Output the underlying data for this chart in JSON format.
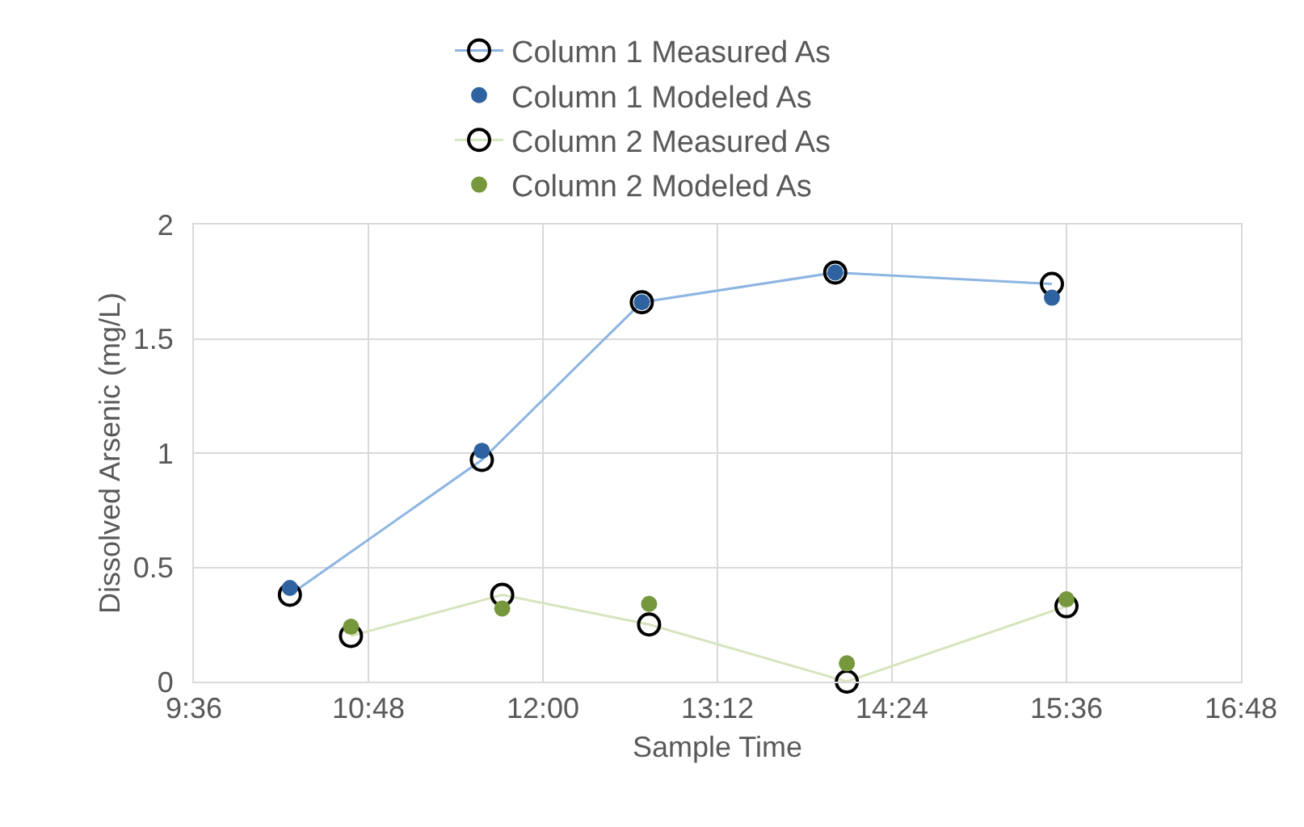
{
  "chart_data": {
    "type": "line",
    "xlabel": "Sample Time",
    "ylabel": "Dissolved Arsenic (mg/L)",
    "xlim": [
      9.6,
      16.8
    ],
    "xticks": [
      {
        "value": 9.6,
        "label": "9:36"
      },
      {
        "value": 10.8,
        "label": "10:48"
      },
      {
        "value": 12,
        "label": "12:00"
      },
      {
        "value": 13.2,
        "label": "13:12"
      },
      {
        "value": 14.4,
        "label": "14:24"
      },
      {
        "value": 15.6,
        "label": "15:36"
      },
      {
        "value": 16.8,
        "label": "16:48"
      }
    ],
    "ylim": [
      0,
      2
    ],
    "yticks": [
      0,
      0.5,
      1,
      1.5,
      2
    ],
    "grid": true,
    "legend": "top",
    "marker": "circle",
    "series": [
      {
        "name": "Column 1 Measured As",
        "color": "#8db4e2",
        "x": [
          10.26,
          11.58,
          12.68,
          14.01,
          15.5
        ],
        "values": [
          0.38,
          0.97,
          1.66,
          1.79,
          1.74
        ]
      },
      {
        "name": "Column 1 Modeled As",
        "type": "scatter",
        "color": "#2e62a0",
        "x": [
          10.26,
          11.58,
          12.68,
          14.01,
          15.5
        ],
        "values": [
          0.41,
          1.01,
          1.66,
          1.79,
          1.68
        ]
      },
      {
        "name": "Column 2 Measured As",
        "color": "#d7e4bd",
        "x": [
          10.68,
          11.72,
          12.73,
          14.09,
          15.6
        ],
        "values": [
          0.2,
          0.38,
          0.25,
          0,
          0.33
        ]
      },
      {
        "name": "Column 2 Modeled As",
        "type": "scatter",
        "color": "#77973c",
        "x": [
          10.68,
          11.72,
          12.73,
          14.09,
          15.6
        ],
        "values": [
          0.24,
          0.32,
          0.34,
          0.08,
          0.36
        ]
      }
    ]
  }
}
